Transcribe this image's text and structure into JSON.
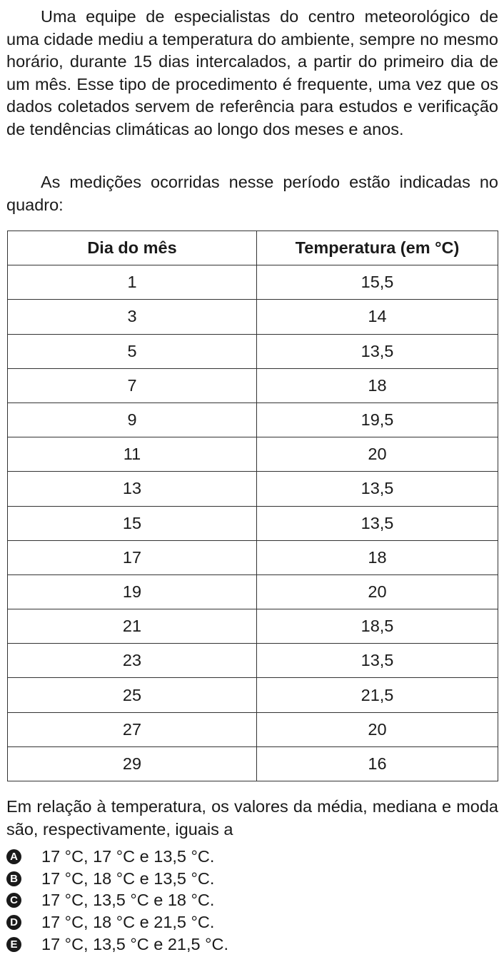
{
  "paragraphs": [
    "Uma equipe de especialistas do centro meteorológico de uma cidade mediu a temperatura do ambiente, sempre no mesmo horário, durante 15 dias intercalados, a partir do primeiro dia de um mês. Esse tipo de procedimento é frequente, uma vez que os dados coletados servem de referência para estudos e verificação de tendências climáticas ao longo dos meses e anos.",
    "As medições ocorridas nesse período estão indicadas no quadro:"
  ],
  "table": {
    "header": [
      "Dia do mês",
      "Temperatura (em °C)"
    ],
    "rows": [
      [
        "1",
        "15,5"
      ],
      [
        "3",
        "14"
      ],
      [
        "5",
        "13,5"
      ],
      [
        "7",
        "18"
      ],
      [
        "9",
        "19,5"
      ],
      [
        "11",
        "20"
      ],
      [
        "13",
        "13,5"
      ],
      [
        "15",
        "13,5"
      ],
      [
        "17",
        "18"
      ],
      [
        "19",
        "20"
      ],
      [
        "21",
        "18,5"
      ],
      [
        "23",
        "13,5"
      ],
      [
        "25",
        "21,5"
      ],
      [
        "27",
        "20"
      ],
      [
        "29",
        "16"
      ]
    ]
  },
  "question": "Em relação à temperatura, os valores da média, mediana e moda são, respectivamente, iguais a",
  "options": [
    {
      "letter": "A",
      "text": "17 °C, 17 °C e 13,5 °C."
    },
    {
      "letter": "B",
      "text": "17 °C, 18 °C e 13,5 °C."
    },
    {
      "letter": "C",
      "text": "17 °C, 13,5 °C e 18 °C."
    },
    {
      "letter": "D",
      "text": "17 °C, 18 °C e 21,5 °C."
    },
    {
      "letter": "E",
      "text": "17 °C, 13,5 °C e 21,5 °C."
    }
  ]
}
